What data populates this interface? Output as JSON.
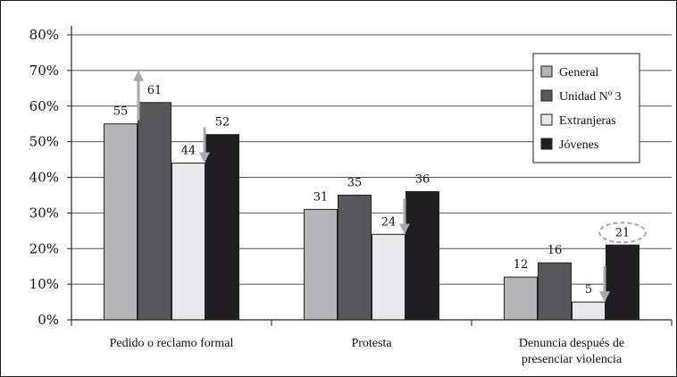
{
  "chart_data": {
    "type": "bar",
    "categories": [
      [
        "Pedido o reclamo formal"
      ],
      [
        "Protesta"
      ],
      [
        "Denuncia después de",
        "presenciar violencia"
      ]
    ],
    "series": [
      {
        "name": "General",
        "values": [
          55,
          31,
          12
        ],
        "color": "#b5b5b8"
      },
      {
        "name": "Unidad Nº 3",
        "values": [
          61,
          35,
          16
        ],
        "color": "#58585a"
      },
      {
        "name": "Extranjeras",
        "values": [
          44,
          24,
          5
        ],
        "color": "#e8e8ea"
      },
      {
        "name": "Jóvenes",
        "values": [
          52,
          36,
          21
        ],
        "color": "#201e20"
      }
    ],
    "y_ticks": [
      "0%",
      "10%",
      "20%",
      "30%",
      "40%",
      "50%",
      "60%",
      "70%",
      "80%"
    ],
    "ylim": [
      0,
      80
    ],
    "grid": true,
    "legend": "top-right",
    "annotations": [
      {
        "type": "arrow-up",
        "category": 0,
        "series": "Unidad Nº 3"
      },
      {
        "type": "arrow-down",
        "category": 0,
        "series": "Extranjeras"
      },
      {
        "type": "arrow-down",
        "category": 1,
        "series": "Extranjeras"
      },
      {
        "type": "arrow-down",
        "category": 2,
        "series": "Extranjeras"
      },
      {
        "type": "dashed-ellipse",
        "category": 2,
        "series": "Jóvenes"
      }
    ],
    "annotation_color": "#a9a9ab"
  }
}
